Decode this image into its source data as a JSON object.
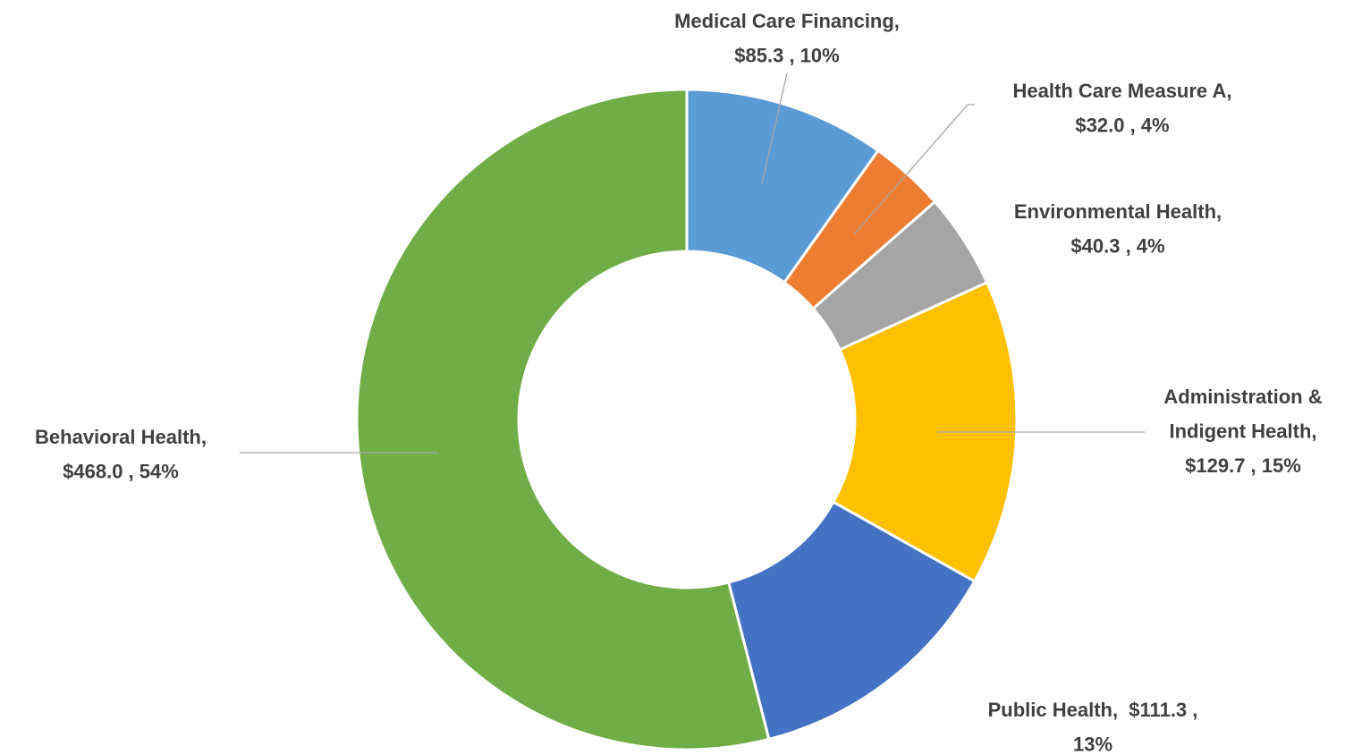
{
  "chart_data": {
    "type": "donut",
    "values": [
      85.3,
      32.0,
      40.3,
      129.7,
      111.3,
      468.0
    ],
    "value_labels": [
      [
        "Medical Care Financing,",
        "$85.3 , 10%"
      ],
      [
        "Health Care Measure A,",
        "$32.0 , 4%"
      ],
      [
        "Environmental Health,",
        "$40.3 , 4%"
      ],
      [
        "Administration &",
        "Indigent Health,",
        "$129.7 , 15%"
      ],
      [
        "Public Health,  $111.3 ,",
        "13%"
      ],
      [
        "Behavioral Health,",
        "$468.0 , 54%"
      ]
    ],
    "colors": [
      "#5b9bd5",
      "#ed7d31",
      "#a5a5a5",
      "#ffc000",
      "#4472c4",
      "#70ad47"
    ]
  }
}
